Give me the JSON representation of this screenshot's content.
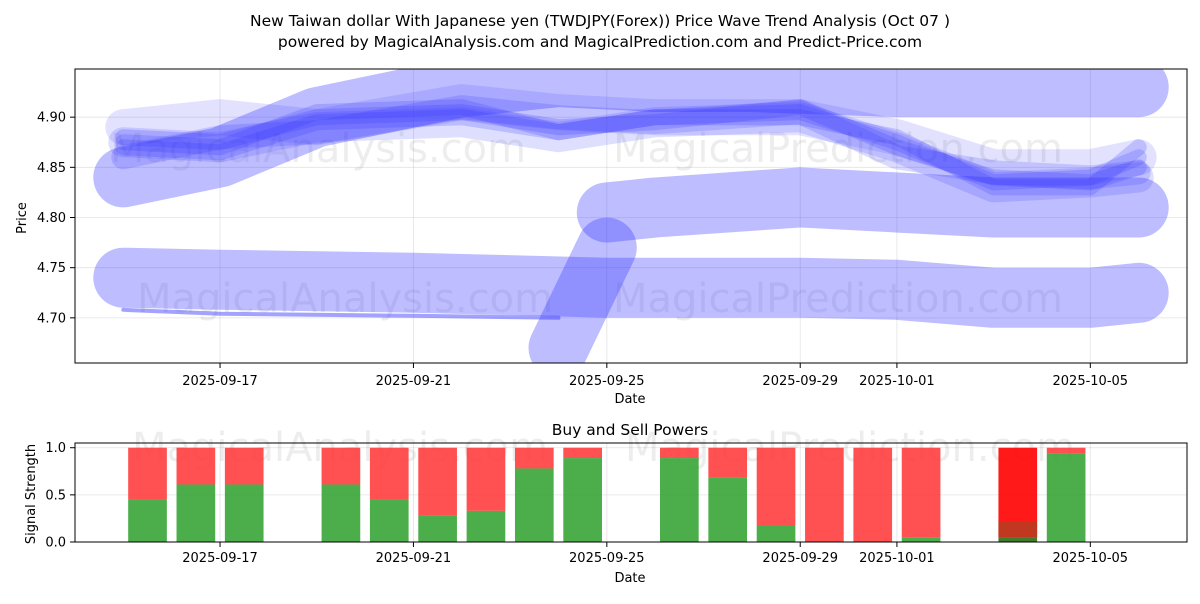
{
  "title_line1": "New Taiwan dollar With Japanese yen (TWDJPY(Forex)) Price Wave Trend Analysis (Oct 07 )",
  "title_line2": "powered by MagicalAnalysis.com and MagicalPrediction.com and Predict-Price.com",
  "watermarks": [
    "MagicalAnalysis.com",
    "MagicalPrediction.com"
  ],
  "colors": {
    "wave": "#3333ff",
    "buy": "#2ca02c",
    "sell": "#ff3333",
    "sell_strong": "#ff0000",
    "buy_dark": "#2b6e12"
  },
  "chart_data": [
    {
      "type": "area",
      "title": "",
      "xlabel": "Date",
      "ylabel": "Price",
      "x_ticks": [
        "2025-09-17",
        "2025-09-21",
        "2025-09-25",
        "2025-09-29",
        "2025-10-01",
        "2025-10-05"
      ],
      "y_ticks": [
        "4.70",
        "4.75",
        "4.80",
        "4.85",
        "4.90"
      ],
      "xlim": [
        "2025-09-14",
        "2025-10-07"
      ],
      "ylim": [
        4.655,
        4.948
      ],
      "grid": true,
      "series": [
        {
          "width": 16,
          "opacity": 0.2,
          "points": [
            [
              "2025-09-15",
              4.875
            ],
            [
              "2025-09-17",
              4.87
            ],
            [
              "2025-09-19",
              4.905
            ],
            [
              "2025-09-22",
              4.91
            ],
            [
              "2025-09-24",
              4.885
            ],
            [
              "2025-09-26",
              4.9
            ],
            [
              "2025-09-29",
              4.905
            ],
            [
              "2025-10-01",
              4.875
            ],
            [
              "2025-10-03",
              4.835
            ],
            [
              "2025-10-05",
              4.84
            ],
            [
              "2025-10-06",
              4.86
            ]
          ]
        },
        {
          "width": 16,
          "opacity": 0.2,
          "points": [
            [
              "2025-09-15",
              4.88
            ],
            [
              "2025-09-17",
              4.875
            ],
            [
              "2025-09-19",
              4.9
            ],
            [
              "2025-09-22",
              4.905
            ],
            [
              "2025-09-24",
              4.89
            ],
            [
              "2025-09-26",
              4.895
            ],
            [
              "2025-09-29",
              4.91
            ],
            [
              "2025-10-01",
              4.87
            ],
            [
              "2025-10-03",
              4.84
            ],
            [
              "2025-10-05",
              4.835
            ],
            [
              "2025-10-06",
              4.85
            ]
          ]
        },
        {
          "width": 16,
          "opacity": 0.2,
          "points": [
            [
              "2025-09-15",
              4.87
            ],
            [
              "2025-09-17",
              4.865
            ],
            [
              "2025-09-19",
              4.895
            ],
            [
              "2025-09-22",
              4.9
            ],
            [
              "2025-09-24",
              4.885
            ],
            [
              "2025-09-26",
              4.9
            ],
            [
              "2025-09-29",
              4.9
            ],
            [
              "2025-10-01",
              4.88
            ],
            [
              "2025-10-03",
              4.83
            ],
            [
              "2025-10-05",
              4.83
            ],
            [
              "2025-10-06",
              4.87
            ]
          ]
        },
        {
          "width": 24,
          "opacity": 0.18,
          "points": [
            [
              "2025-09-15",
              4.86
            ],
            [
              "2025-09-17",
              4.88
            ],
            [
              "2025-09-19",
              4.885
            ],
            [
              "2025-09-22",
              4.91
            ],
            [
              "2025-09-24",
              4.9
            ],
            [
              "2025-09-26",
              4.895
            ],
            [
              "2025-09-29",
              4.905
            ],
            [
              "2025-10-01",
              4.86
            ],
            [
              "2025-10-03",
              4.845
            ],
            [
              "2025-10-05",
              4.84
            ],
            [
              "2025-10-06",
              4.845
            ]
          ]
        },
        {
          "width": 30,
          "opacity": 0.16,
          "points": [
            [
              "2025-09-15",
              4.875
            ],
            [
              "2025-09-17",
              4.87
            ],
            [
              "2025-09-19",
              4.89
            ],
            [
              "2025-09-22",
              4.895
            ],
            [
              "2025-09-24",
              4.88
            ],
            [
              "2025-09-26",
              4.895
            ],
            [
              "2025-09-29",
              4.9
            ],
            [
              "2025-10-01",
              4.87
            ],
            [
              "2025-10-03",
              4.83
            ],
            [
              "2025-10-05",
              4.835
            ],
            [
              "2025-10-06",
              4.84
            ]
          ]
        },
        {
          "width": 36,
          "opacity": 0.14,
          "points": [
            [
              "2025-09-15",
              4.89
            ],
            [
              "2025-09-17",
              4.9
            ],
            [
              "2025-09-19",
              4.89
            ],
            [
              "2025-09-22",
              4.915
            ],
            [
              "2025-09-24",
              4.905
            ],
            [
              "2025-09-26",
              4.9
            ],
            [
              "2025-09-29",
              4.9
            ],
            [
              "2025-10-01",
              4.88
            ],
            [
              "2025-10-03",
              4.85
            ],
            [
              "2025-10-05",
              4.85
            ],
            [
              "2025-10-06",
              4.86
            ]
          ]
        },
        {
          "width": 60,
          "opacity": 0.32,
          "points": [
            [
              "2025-09-15",
              4.84
            ],
            [
              "2025-09-17",
              4.86
            ],
            [
              "2025-09-19",
              4.9
            ],
            [
              "2025-09-22",
              4.93
            ],
            [
              "2025-09-24",
              4.94
            ],
            [
              "2025-09-26",
              4.935
            ],
            [
              "2025-09-28",
              4.935
            ],
            [
              "2025-10-01",
              4.93
            ],
            [
              "2025-10-05",
              4.93
            ],
            [
              "2025-10-06",
              4.93
            ]
          ]
        },
        {
          "width": 60,
          "opacity": 0.32,
          "points": [
            [
              "2025-09-25",
              4.805
            ],
            [
              "2025-09-26",
              4.81
            ],
            [
              "2025-09-29",
              4.82
            ],
            [
              "2025-10-01",
              4.815
            ],
            [
              "2025-10-03",
              4.81
            ],
            [
              "2025-10-05",
              4.81
            ],
            [
              "2025-10-06",
              4.81
            ]
          ]
        },
        {
          "width": 60,
          "opacity": 0.32,
          "points": [
            [
              "2025-09-15",
              4.74
            ],
            [
              "2025-09-17",
              4.738
            ],
            [
              "2025-09-21",
              4.735
            ],
            [
              "2025-09-25",
              4.73
            ],
            [
              "2025-09-29",
              4.73
            ],
            [
              "2025-10-01",
              4.728
            ],
            [
              "2025-10-03",
              4.72
            ],
            [
              "2025-10-05",
              4.72
            ],
            [
              "2025-10-06",
              4.725
            ]
          ]
        },
        {
          "width": 60,
          "opacity": 0.32,
          "points": [
            [
              "2025-09-24",
              4.67
            ],
            [
              "2025-09-25",
              4.77
            ]
          ]
        },
        {
          "width": 4,
          "opacity": 0.45,
          "points": [
            [
              "2025-09-15",
              4.708
            ],
            [
              "2025-09-17",
              4.704
            ],
            [
              "2025-09-21",
              4.702
            ],
            [
              "2025-09-24",
              4.7
            ]
          ]
        }
      ]
    },
    {
      "type": "bar",
      "title": "Buy and Sell Powers",
      "xlabel": "Date",
      "ylabel": "Signal Strength",
      "x_ticks": [
        "2025-09-17",
        "2025-09-21",
        "2025-09-25",
        "2025-09-29",
        "2025-10-01",
        "2025-10-05"
      ],
      "y_ticks": [
        "0.0",
        "0.5",
        "1.0"
      ],
      "xlim": [
        "2025-09-14",
        "2025-10-07"
      ],
      "ylim": [
        0,
        1.05
      ],
      "grid": true,
      "bars": [
        {
          "date": "2025-09-15",
          "buy": 0.45
        },
        {
          "date": "2025-09-16",
          "buy": 0.61
        },
        {
          "date": "2025-09-17",
          "buy": 0.61
        },
        {
          "date": "2025-09-19",
          "buy": 0.61
        },
        {
          "date": "2025-09-20",
          "buy": 0.45
        },
        {
          "date": "2025-09-21",
          "buy": 0.28
        },
        {
          "date": "2025-09-22",
          "buy": 0.33
        },
        {
          "date": "2025-09-23",
          "buy": 0.78
        },
        {
          "date": "2025-09-24",
          "buy": 0.89
        },
        {
          "date": "2025-09-26",
          "buy": 0.89
        },
        {
          "date": "2025-09-27",
          "buy": 0.68
        },
        {
          "date": "2025-09-28",
          "buy": 0.17
        },
        {
          "date": "2025-09-29",
          "buy": 0.0
        },
        {
          "date": "2025-09-30",
          "buy": 0.0
        },
        {
          "date": "2025-10-01",
          "buy": 0.05
        },
        {
          "date": "2025-10-03",
          "buy": 0.05,
          "strong": true
        },
        {
          "date": "2025-10-04",
          "buy": 0.94
        }
      ]
    }
  ]
}
